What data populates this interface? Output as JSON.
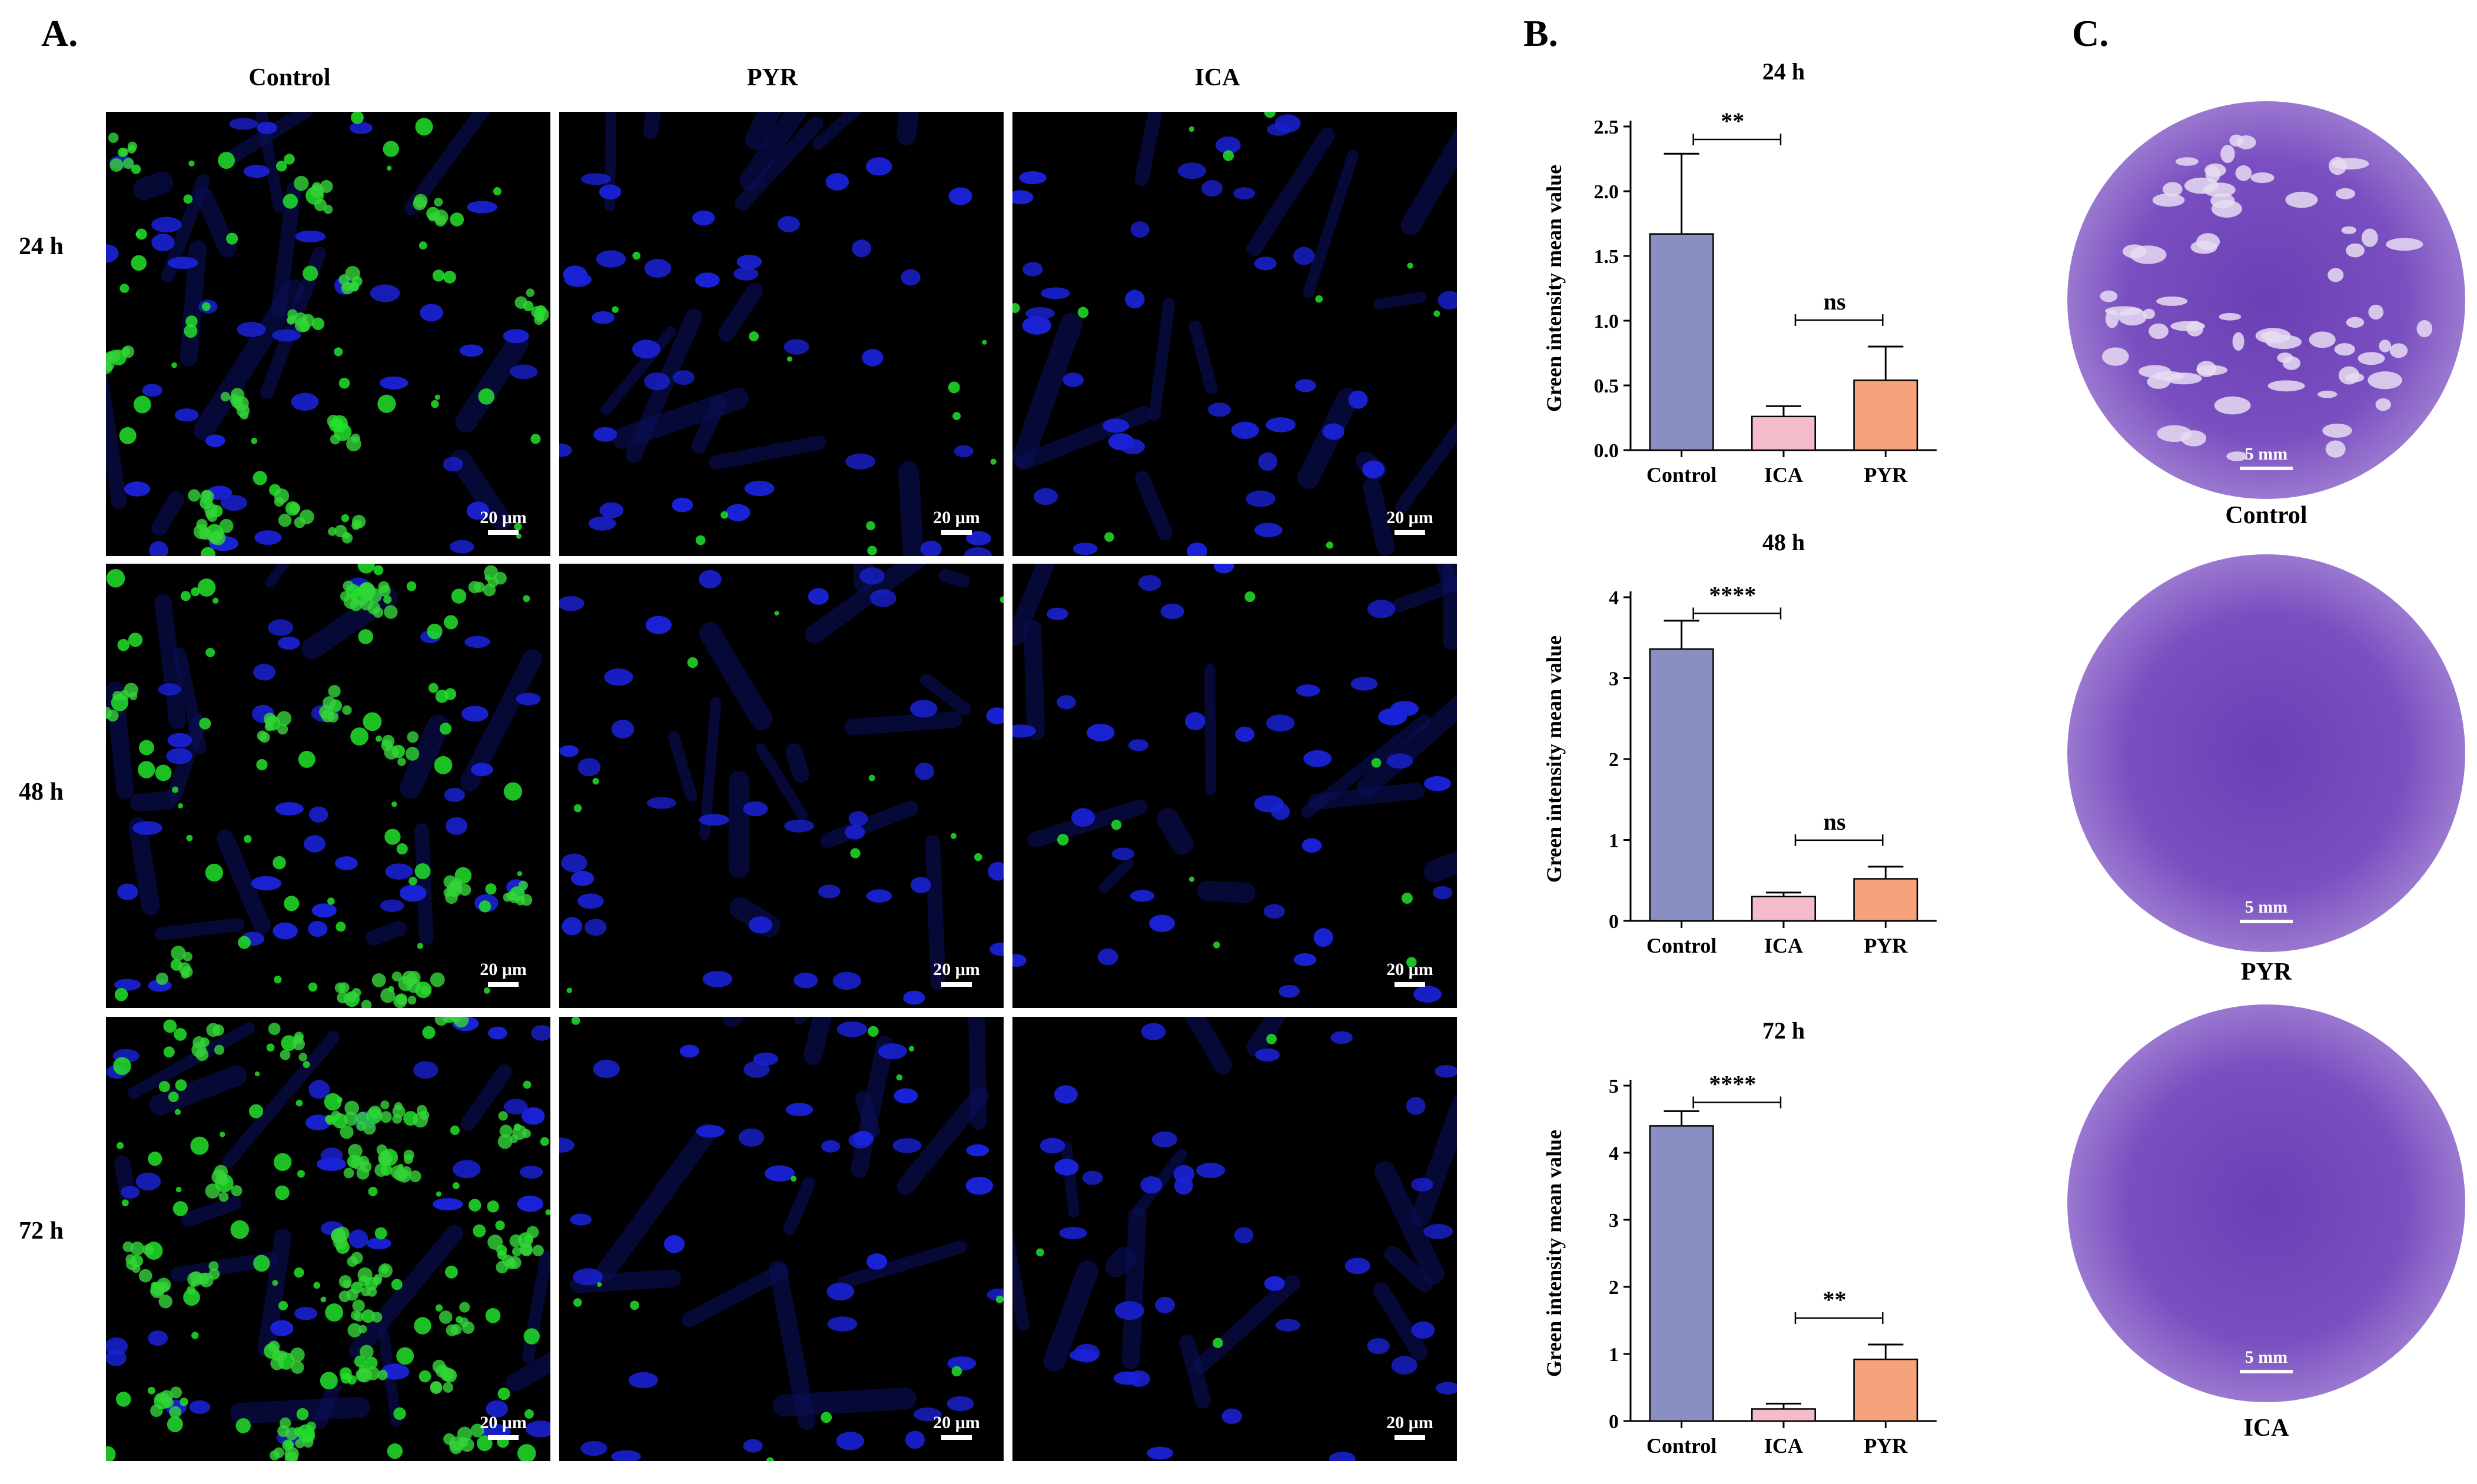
{
  "panels": {
    "A": {
      "letter": "A.",
      "columns": [
        "Control",
        "PYR",
        "ICA"
      ],
      "rows": [
        "24 h",
        "48 h",
        "72 h"
      ],
      "scale_label": "20 μm"
    },
    "B": {
      "letter": "B."
    },
    "C": {
      "letter": "C.",
      "wells": [
        {
          "label": "Control",
          "scale_label": "5 mm"
        },
        {
          "label": "PYR",
          "scale_label": "5 mm"
        },
        {
          "label": "ICA",
          "scale_label": "5 mm"
        }
      ]
    }
  },
  "colors": {
    "control": "#8a8fc2",
    "ica": "#f4bccb",
    "pyr": "#f6a27a",
    "nuclei": "#1a22d8",
    "parasites": "#22e02a",
    "crystal_violet": "#7a4fc0"
  },
  "chart_data": [
    {
      "type": "bar",
      "title": "24 h",
      "ylabel": "Green intensity mean value",
      "categories": [
        "Control",
        "ICA",
        "PYR"
      ],
      "values": [
        1.67,
        0.26,
        0.54
      ],
      "errors": [
        0.62,
        0.08,
        0.26
      ],
      "ylim": [
        0,
        2.5
      ],
      "yticks": [
        "0.0",
        "0.5",
        "1.0",
        "1.5",
        "2.0",
        "2.5"
      ],
      "annotations": [
        {
          "from": 0,
          "to": 1,
          "text": "**"
        },
        {
          "from": 1,
          "to": 2,
          "text": "ns"
        }
      ]
    },
    {
      "type": "bar",
      "title": "48 h",
      "ylabel": "Green intensity mean value",
      "categories": [
        "Control",
        "ICA",
        "PYR"
      ],
      "values": [
        3.36,
        0.3,
        0.52
      ],
      "errors": [
        0.35,
        0.05,
        0.15
      ],
      "ylim": [
        0,
        4
      ],
      "yticks": [
        "0",
        "1",
        "2",
        "3",
        "4"
      ],
      "annotations": [
        {
          "from": 0,
          "to": 1,
          "text": "****"
        },
        {
          "from": 1,
          "to": 2,
          "text": "ns"
        }
      ]
    },
    {
      "type": "bar",
      "title": "72 h",
      "ylabel": "Green intensity mean value",
      "categories": [
        "Control",
        "ICA",
        "PYR"
      ],
      "values": [
        4.4,
        0.18,
        0.92
      ],
      "errors": [
        0.22,
        0.08,
        0.22
      ],
      "ylim": [
        0,
        5
      ],
      "yticks": [
        "0",
        "1",
        "2",
        "3",
        "4",
        "5"
      ],
      "annotations": [
        {
          "from": 0,
          "to": 1,
          "text": "****"
        },
        {
          "from": 1,
          "to": 2,
          "text": "**"
        }
      ]
    }
  ]
}
